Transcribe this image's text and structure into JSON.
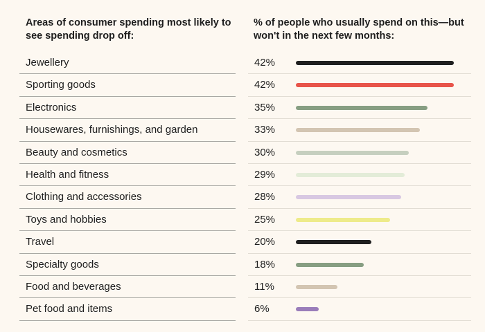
{
  "chart_data": {
    "type": "bar",
    "orientation": "horizontal",
    "headers": [
      "Areas of consumer spending most likely to see spending drop off:",
      "% of people who usually spend on this—but won't in the next few months:"
    ],
    "categories": [
      "Jewellery",
      "Sporting goods",
      "Electronics",
      "Housewares, furnishings, and garden",
      "Beauty and cosmetics",
      "Health and fitness",
      "Clothing and accessories",
      "Toys and hobbies",
      "Travel",
      "Specialty goods",
      "Food and beverages",
      "Pet food and items"
    ],
    "values": [
      42,
      42,
      35,
      33,
      30,
      29,
      28,
      25,
      20,
      18,
      11,
      6
    ],
    "labels": [
      "42%",
      "42%",
      "35%",
      "33%",
      "30%",
      "29%",
      "28%",
      "25%",
      "20%",
      "18%",
      "11%",
      "6%"
    ],
    "colors": [
      "#1f1f1f",
      "#e8544a",
      "#879e82",
      "#d3c5b2",
      "#c6cfbf",
      "#e3ecd8",
      "#d8c8e2",
      "#eeeb8a",
      "#1f1f1f",
      "#879e82",
      "#d3c5b2",
      "#9a7dba"
    ],
    "xlim": [
      0,
      42
    ]
  }
}
